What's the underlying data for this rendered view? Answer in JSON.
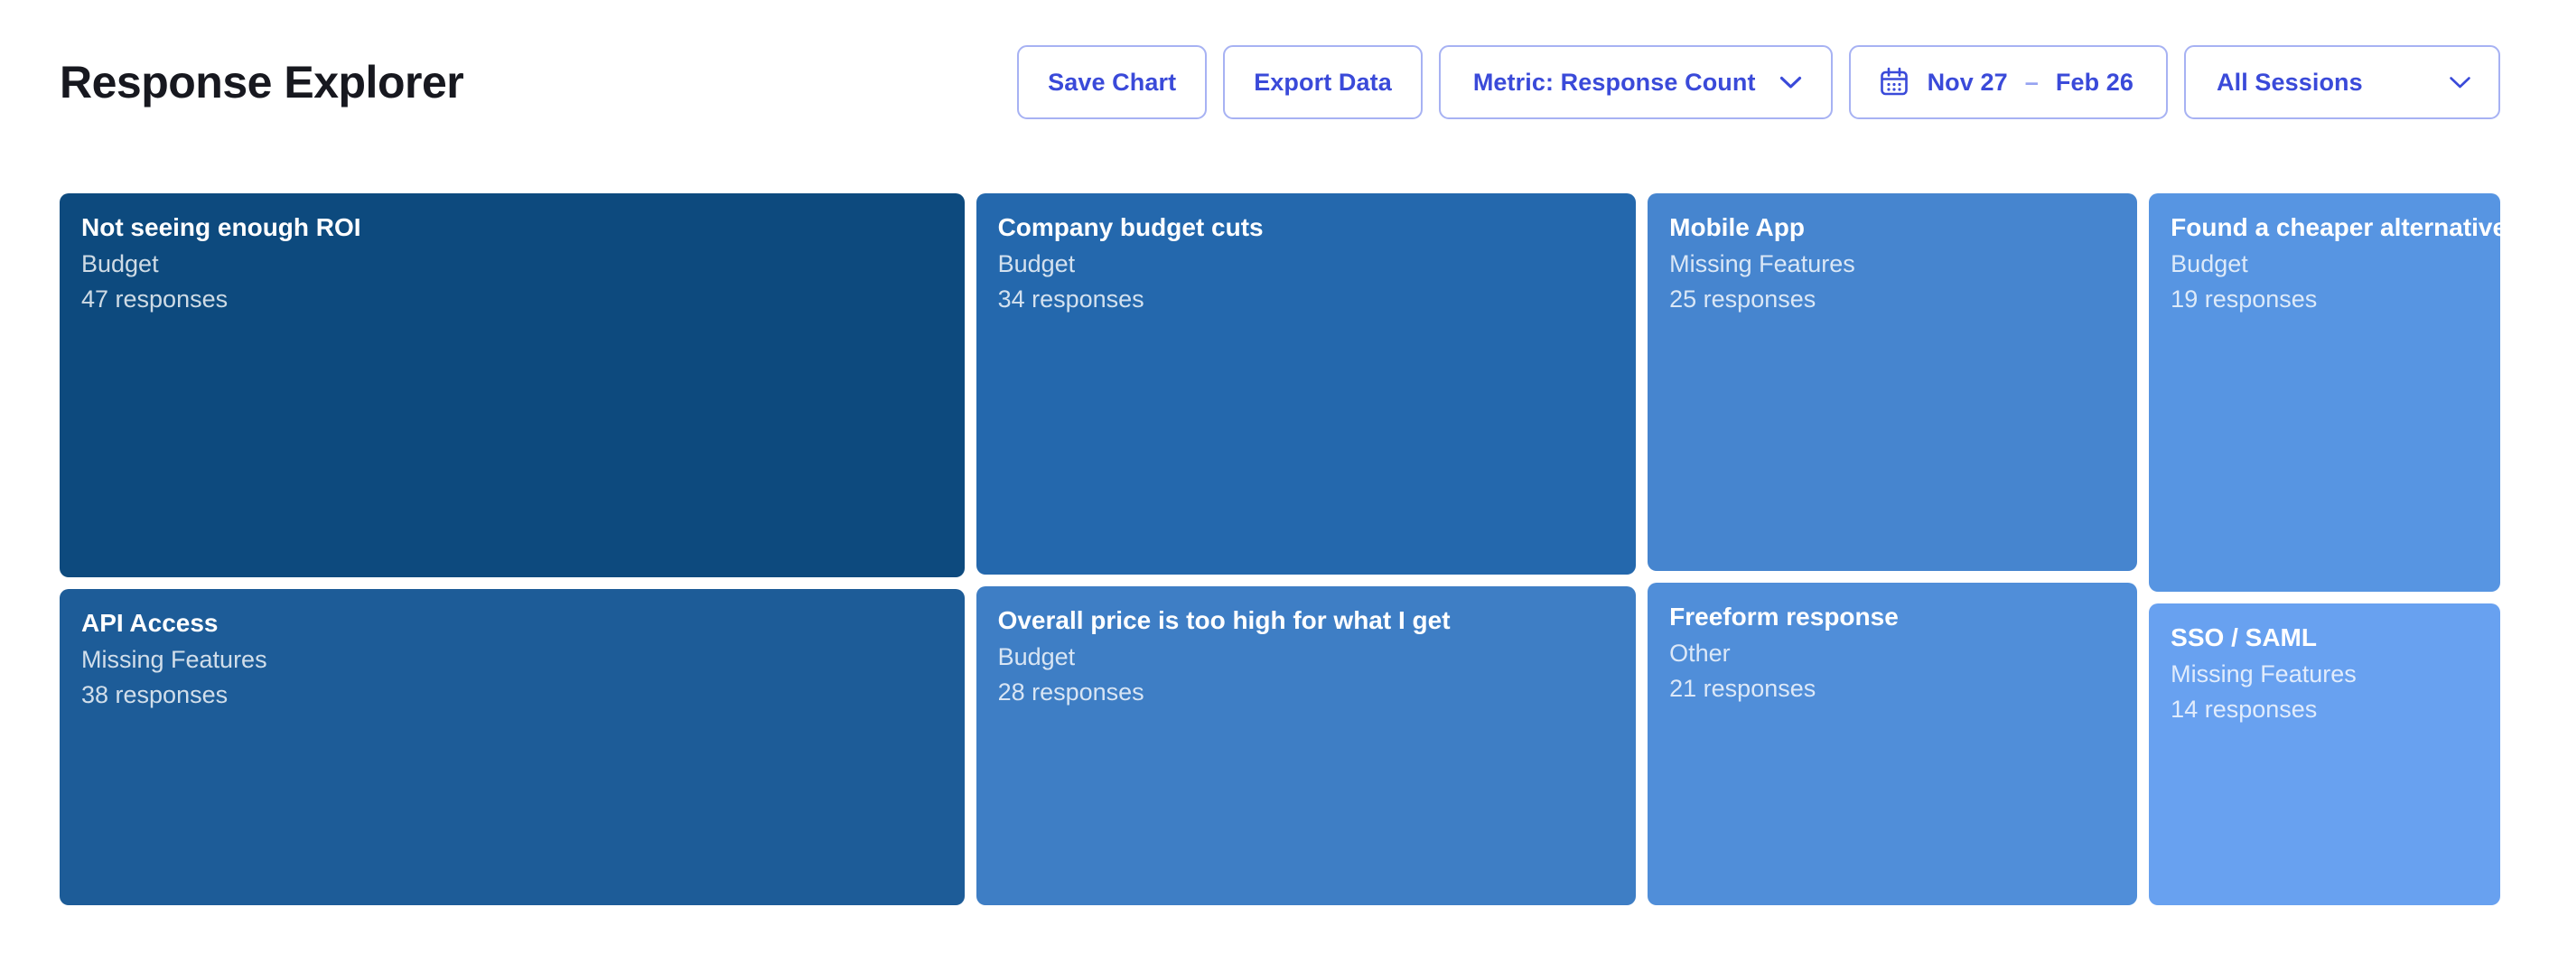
{
  "header": {
    "title": "Response Explorer",
    "toolbar": {
      "save_chart": "Save Chart",
      "export_data": "Export Data",
      "metric": "Metric: Response Count",
      "date_range": {
        "start": "Nov 27",
        "separator": "–",
        "end": "Feb 26"
      },
      "sessions": "All Sessions"
    }
  },
  "colors": {
    "accent_text": "#3a4ad9",
    "accent_border": "#a7b2f3",
    "dash": "#96a3f1",
    "title_text": "#17181f",
    "tile_text": "#ffffff",
    "tile_text_secondary": "rgba(255,255,255,0.80)"
  },
  "chart_data": {
    "type": "treemap",
    "title": "Response Explorer",
    "metric": "Response Count",
    "legend": "none",
    "layout_hint": "4 columns sized by column total; tiles stacked within column sized by value; darker blue = higher count",
    "columns": [
      {
        "tiles": [
          {
            "label": "Not seeing enough ROI",
            "category": "Budget",
            "value": 47,
            "responses_text": "47 responses",
            "color": "#0d4a7e"
          },
          {
            "label": "API Access",
            "category": "Missing Features",
            "value": 38,
            "responses_text": "38 responses",
            "color": "#1d5c98"
          }
        ]
      },
      {
        "tiles": [
          {
            "label": "Company budget cuts",
            "category": "Budget",
            "value": 34,
            "responses_text": "34 responses",
            "color": "#2468ad"
          },
          {
            "label": "Overall price is too high for what I get",
            "category": "Budget",
            "value": 28,
            "responses_text": "28 responses",
            "color": "#3e7ec5"
          }
        ]
      },
      {
        "tiles": [
          {
            "label": "Mobile App",
            "category": "Missing Features",
            "value": 25,
            "responses_text": "25 responses",
            "color": "#4685cf"
          },
          {
            "label": "Freeform response",
            "category": "Other",
            "value": 21,
            "responses_text": "21 responses",
            "color": "#508ed9"
          }
        ]
      },
      {
        "tiles": [
          {
            "label": "Found a cheaper alternative",
            "category": "Budget",
            "value": 19,
            "responses_text": "19 responses",
            "color": "#5795e2"
          },
          {
            "label": "SSO / SAML",
            "category": "Missing Features",
            "value": 14,
            "responses_text": "14 responses",
            "color": "#68a1f0"
          }
        ]
      }
    ]
  }
}
